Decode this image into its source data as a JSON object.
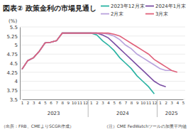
{
  "chart_data": {
    "type": "line",
    "title": "図表② 政策金利の市場見通し",
    "y_label": "(%)",
    "source": "（出所：FRB、CMEよりSCGR作成）",
    "note": "（注）CME FedWatchツールの加重平均値",
    "categories": [
      "1",
      "2",
      "3",
      "4",
      "5",
      "6",
      "7",
      "8",
      "9",
      "10",
      "11",
      "12",
      "1",
      "2",
      "3",
      "4",
      "5",
      "6",
      "7",
      "8",
      "9",
      "10",
      "11",
      "12",
      "1",
      "2",
      "3",
      "4",
      "5"
    ],
    "x_groups": [
      {
        "label": "2023",
        "count": 12
      },
      {
        "label": "2024",
        "count": 12
      },
      {
        "label": "2025",
        "count": 5
      }
    ],
    "ylim": [
      3.5,
      5.5
    ],
    "yticks": [
      3.5,
      3.75,
      4,
      4.25,
      4.5,
      4.75,
      5,
      5.25,
      5.5
    ],
    "grid": true,
    "series": [
      {
        "name": "2023年12月末",
        "color": "#2ab3a3",
        "values": [
          4.33,
          4.57,
          4.65,
          4.83,
          5.06,
          5.08,
          5.12,
          5.33,
          5.33,
          5.33,
          5.33,
          5.33,
          5.33,
          5.28,
          5.12,
          5.0,
          4.85,
          4.65,
          4.5,
          4.35,
          4.15,
          4.0,
          3.85,
          3.65,
          null,
          null,
          null,
          null,
          null
        ]
      },
      {
        "name": "2024年1月末",
        "color": "#7a4ea3",
        "values": [
          4.33,
          4.57,
          4.65,
          4.83,
          5.06,
          5.08,
          5.12,
          5.33,
          5.33,
          5.33,
          5.33,
          5.33,
          5.33,
          5.33,
          5.28,
          5.2,
          5.05,
          4.9,
          4.75,
          4.6,
          4.45,
          4.3,
          4.15,
          4.0,
          3.9,
          3.85,
          null,
          null,
          null
        ]
      },
      {
        "name": "2月末",
        "color": "#b8a2dc",
        "values": [
          4.33,
          4.57,
          4.65,
          4.83,
          5.06,
          5.08,
          5.12,
          5.33,
          5.33,
          5.33,
          5.33,
          5.33,
          5.33,
          5.33,
          5.33,
          5.3,
          5.25,
          5.15,
          5.0,
          4.9,
          4.75,
          4.65,
          4.55,
          4.45,
          4.35,
          4.3,
          4.3,
          null,
          null
        ]
      },
      {
        "name": "3月末",
        "color": "#e0607a",
        "values": [
          4.33,
          4.57,
          4.65,
          4.83,
          5.06,
          5.08,
          5.12,
          5.33,
          5.33,
          5.33,
          5.33,
          5.33,
          5.33,
          5.33,
          5.33,
          5.33,
          5.3,
          5.25,
          5.15,
          5.05,
          4.95,
          4.85,
          4.75,
          4.6,
          4.5,
          4.4,
          4.3,
          4.25,
          null
        ]
      }
    ]
  }
}
